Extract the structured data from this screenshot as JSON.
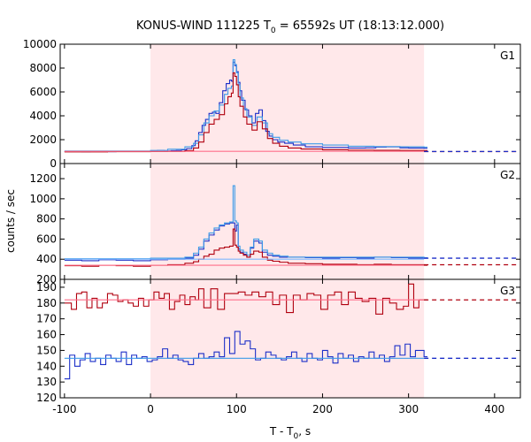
{
  "title": {
    "prefix": "KONUS-WIND 111225 T",
    "sub": "0",
    "suffix": " = 65592s UT (18:13:12.000)"
  },
  "ylabel": "counts / sec",
  "xlabel": {
    "prefix": "T - T",
    "sub": "0",
    "suffix": ", s"
  },
  "colors": {
    "red": "#b0000f",
    "blue": "#1c2fc8",
    "cyan": "#3d9be8",
    "pink": "#ff6f8a",
    "shade": "#ffe8ea",
    "lightblue": "#7fb8ff"
  },
  "chart_data": [
    {
      "type": "line",
      "panel": "G1",
      "xlim": [
        -105,
        430
      ],
      "ylim": [
        0,
        10000
      ],
      "yticks": [
        "0",
        "2000",
        "4000",
        "6000",
        "8000",
        "10000"
      ],
      "shaded_interval": [
        0,
        318
      ],
      "series": [
        {
          "color": "blue",
          "style": "step",
          "x": [
            -100,
            -90,
            -80,
            -70,
            -60,
            -50,
            -40,
            -30,
            -20,
            -10,
            0,
            8,
            16,
            24,
            30,
            36,
            42,
            48,
            52,
            56,
            60,
            64,
            68,
            72,
            76,
            80,
            84,
            88,
            92,
            94,
            96,
            98,
            100,
            102,
            104,
            106,
            110,
            114,
            118,
            122,
            126,
            130,
            134,
            138,
            142,
            148,
            156,
            166,
            180,
            200,
            230,
            250,
            262,
            274,
            290,
            300,
            318
          ],
          "y": [
            1000,
            1010,
            990,
            1000,
            1010,
            995,
            1005,
            1000,
            1010,
            1000,
            1050,
            1100,
            1050,
            1080,
            1100,
            1150,
            1250,
            1500,
            1900,
            2600,
            3200,
            3700,
            4200,
            4300,
            4200,
            5100,
            6100,
            6700,
            7000,
            6900,
            8500,
            8200,
            7700,
            6800,
            6100,
            5300,
            4500,
            4000,
            3400,
            4200,
            4500,
            3600,
            2700,
            2300,
            2000,
            1800,
            1700,
            1550,
            1400,
            1350,
            1300,
            1320,
            1380,
            1400,
            1320,
            1300,
            1280
          ]
        },
        {
          "color": "cyan",
          "style": "step",
          "x": [
            -100,
            -50,
            0,
            20,
            40,
            50,
            56,
            62,
            68,
            74,
            80,
            86,
            90,
            94,
            96,
            98,
            100,
            102,
            104,
            108,
            112,
            118,
            124,
            130,
            136,
            142,
            150,
            160,
            175,
            200,
            230,
            260,
            290,
            318
          ],
          "y": [
            1050,
            1050,
            1100,
            1200,
            1400,
            1700,
            2400,
            3400,
            4000,
            4400,
            4900,
            5800,
            6300,
            6500,
            8700,
            8300,
            7600,
            6600,
            5500,
            4600,
            3900,
            3200,
            3900,
            3400,
            2500,
            2200,
            1950,
            1800,
            1650,
            1550,
            1450,
            1420,
            1400,
            1380
          ]
        },
        {
          "color": "red",
          "style": "step",
          "x": [
            -100,
            -50,
            0,
            20,
            40,
            50,
            56,
            62,
            68,
            74,
            80,
            86,
            90,
            94,
            96,
            98,
            100,
            102,
            104,
            108,
            112,
            118,
            124,
            130,
            136,
            142,
            150,
            160,
            175,
            200,
            230,
            260,
            290,
            318
          ],
          "y": [
            980,
            990,
            1000,
            1010,
            1080,
            1300,
            1800,
            2600,
            3300,
            3700,
            4100,
            5000,
            5600,
            5900,
            7600,
            7300,
            6600,
            5600,
            4800,
            3900,
            3300,
            2800,
            3500,
            2900,
            2100,
            1700,
            1450,
            1300,
            1220,
            1150,
            1120,
            1110,
            1100,
            1090
          ]
        },
        {
          "color": "pink",
          "style": "line",
          "x": [
            -100,
            318
          ],
          "y": [
            1020,
            1020
          ]
        },
        {
          "color": "red",
          "style": "dashed",
          "x": [
            318,
            425
          ],
          "y": [
            1000,
            1000
          ]
        },
        {
          "color": "blue",
          "style": "dashed",
          "x": [
            318,
            425
          ],
          "y": [
            1010,
            1010
          ]
        }
      ],
      "label": "G1"
    },
    {
      "type": "line",
      "panel": "G2",
      "xlim": [
        -105,
        430
      ],
      "ylim": [
        200,
        1350
      ],
      "yticks": [
        "200",
        "400",
        "600",
        "800",
        "1000",
        "1200"
      ],
      "shaded_interval": [
        0,
        318
      ],
      "series": [
        {
          "color": "blue",
          "style": "step",
          "x": [
            -100,
            -80,
            -60,
            -40,
            -20,
            0,
            20,
            40,
            50,
            56,
            62,
            68,
            74,
            80,
            86,
            92,
            96,
            98,
            100,
            102,
            104,
            108,
            112,
            116,
            120,
            126,
            130,
            136,
            142,
            150,
            160,
            180,
            200,
            220,
            240,
            260,
            280,
            300,
            318
          ],
          "y": [
            390,
            385,
            395,
            390,
            385,
            395,
            400,
            410,
            440,
            500,
            580,
            640,
            690,
            730,
            750,
            760,
            760,
            680,
            740,
            500,
            470,
            450,
            420,
            510,
            580,
            560,
            470,
            440,
            430,
            420,
            420,
            415,
            410,
            415,
            410,
            420,
            415,
            410,
            410
          ]
        },
        {
          "color": "cyan",
          "style": "step",
          "x": [
            -100,
            -40,
            0,
            40,
            50,
            56,
            62,
            68,
            74,
            80,
            86,
            92,
            96,
            98,
            100,
            102,
            104,
            108,
            112,
            116,
            120,
            126,
            130,
            136,
            142,
            150,
            160,
            200,
            260,
            318
          ],
          "y": [
            405,
            405,
            410,
            420,
            460,
            520,
            600,
            660,
            710,
            740,
            760,
            770,
            1130,
            780,
            760,
            530,
            490,
            470,
            440,
            520,
            600,
            580,
            490,
            460,
            440,
            430,
            420,
            420,
            420,
            415
          ]
        },
        {
          "color": "red",
          "style": "step",
          "x": [
            -100,
            -80,
            -60,
            -40,
            -20,
            0,
            20,
            40,
            50,
            56,
            62,
            68,
            74,
            80,
            86,
            92,
            96,
            98,
            100,
            102,
            104,
            108,
            112,
            116,
            120,
            126,
            130,
            136,
            142,
            150,
            160,
            180,
            200,
            220,
            240,
            260,
            280,
            300,
            318
          ],
          "y": [
            335,
            330,
            340,
            335,
            330,
            340,
            345,
            360,
            375,
            400,
            430,
            450,
            490,
            510,
            520,
            530,
            700,
            540,
            520,
            480,
            460,
            440,
            420,
            450,
            480,
            470,
            420,
            390,
            380,
            370,
            360,
            355,
            350,
            350,
            345,
            350,
            345,
            345,
            340
          ]
        },
        {
          "color": "pink",
          "style": "line",
          "x": [
            -100,
            318
          ],
          "y": [
            340,
            340
          ]
        },
        {
          "color": "lightblue",
          "style": "line",
          "x": [
            -100,
            318
          ],
          "y": [
            400,
            400
          ]
        },
        {
          "color": "blue",
          "style": "dashed",
          "x": [
            318,
            425
          ],
          "y": [
            410,
            410
          ]
        },
        {
          "color": "red",
          "style": "dashed",
          "x": [
            318,
            425
          ],
          "y": [
            345,
            345
          ]
        }
      ],
      "label": "G2"
    },
    {
      "type": "line",
      "panel": "G3",
      "xlim": [
        -105,
        430
      ],
      "ylim": [
        120,
        195
      ],
      "yticks": [
        "120",
        "130",
        "140",
        "150",
        "160",
        "170",
        "180",
        "190"
      ],
      "shaded_interval": [
        0,
        318
      ],
      "series": [
        {
          "color": "red",
          "style": "step",
          "x": [
            -100,
            -92,
            -86,
            -80,
            -74,
            -68,
            -62,
            -56,
            -50,
            -44,
            -38,
            -32,
            -26,
            -20,
            -14,
            -8,
            -2,
            4,
            10,
            16,
            22,
            28,
            34,
            40,
            46,
            52,
            56,
            62,
            70,
            78,
            86,
            94,
            102,
            110,
            118,
            126,
            134,
            142,
            150,
            158,
            166,
            174,
            182,
            190,
            198,
            206,
            214,
            222,
            230,
            238,
            246,
            254,
            262,
            270,
            278,
            286,
            294,
            300,
            306,
            312,
            318
          ],
          "y": [
            180,
            176,
            186,
            187,
            177,
            183,
            177,
            180,
            186,
            185,
            181,
            182,
            180,
            178,
            183,
            178,
            182,
            187,
            183,
            186,
            176,
            181,
            185,
            179,
            184,
            182,
            189,
            177,
            189,
            176,
            186,
            186,
            187,
            185,
            187,
            184,
            187,
            179,
            185,
            174,
            185,
            182,
            186,
            185,
            176,
            185,
            187,
            179,
            187,
            183,
            181,
            183,
            173,
            183,
            180,
            176,
            178,
            192,
            177,
            182,
            182
          ]
        },
        {
          "color": "blue",
          "style": "step",
          "x": [
            -100,
            -94,
            -88,
            -82,
            -76,
            -70,
            -64,
            -58,
            -52,
            -46,
            -40,
            -34,
            -28,
            -22,
            -16,
            -10,
            -4,
            2,
            8,
            14,
            20,
            26,
            32,
            38,
            44,
            50,
            56,
            62,
            68,
            74,
            80,
            86,
            92,
            98,
            104,
            110,
            116,
            122,
            128,
            134,
            140,
            146,
            152,
            158,
            164,
            170,
            176,
            182,
            188,
            194,
            200,
            206,
            212,
            218,
            224,
            230,
            236,
            242,
            248,
            254,
            260,
            266,
            272,
            278,
            284,
            290,
            296,
            302,
            308,
            318
          ],
          "y": [
            132,
            147,
            140,
            144,
            148,
            143,
            145,
            141,
            147,
            145,
            143,
            149,
            141,
            147,
            145,
            146,
            143,
            144,
            146,
            151,
            145,
            147,
            144,
            143,
            141,
            145,
            148,
            145,
            146,
            149,
            146,
            158,
            148,
            162,
            154,
            156,
            151,
            144,
            145,
            149,
            147,
            145,
            144,
            146,
            149,
            145,
            143,
            148,
            145,
            144,
            150,
            146,
            142,
            148,
            145,
            147,
            143,
            146,
            145,
            149,
            145,
            147,
            143,
            146,
            153,
            147,
            154,
            146,
            150,
            146
          ]
        },
        {
          "color": "pink",
          "style": "line",
          "x": [
            -100,
            318
          ],
          "y": [
            182,
            182
          ]
        },
        {
          "color": "cyan",
          "style": "line",
          "x": [
            -100,
            318
          ],
          "y": [
            145,
            145
          ]
        },
        {
          "color": "red",
          "style": "dashed",
          "x": [
            318,
            425
          ],
          "y": [
            182,
            182
          ]
        },
        {
          "color": "blue",
          "style": "dashed",
          "x": [
            318,
            425
          ],
          "y": [
            145,
            145
          ]
        }
      ],
      "label": "G3"
    }
  ],
  "xticks": [
    "-100",
    "0",
    "100",
    "200",
    "300",
    "400"
  ],
  "xtick_values": [
    -100,
    0,
    100,
    200,
    300,
    400
  ]
}
